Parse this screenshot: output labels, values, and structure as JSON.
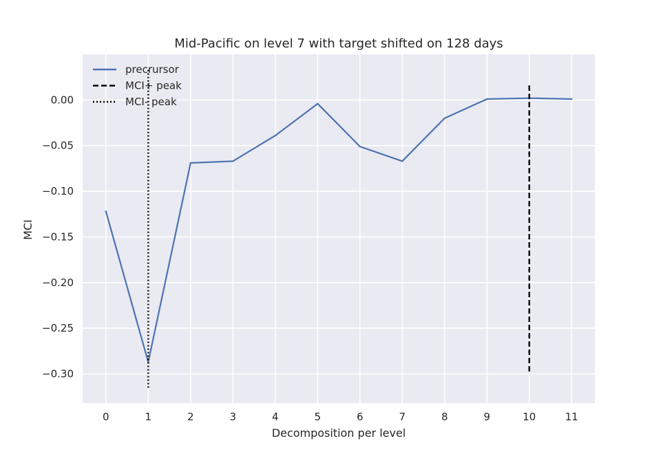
{
  "chart_data": {
    "type": "line",
    "title": "Mid-Pacific on level 7 with target shifted on 128 days",
    "xlabel": "Decomposition per level",
    "ylabel": "MCI",
    "x": [
      0,
      1,
      2,
      3,
      4,
      5,
      6,
      7,
      8,
      9,
      10,
      11
    ],
    "x_ticks": [
      "0",
      "1",
      "2",
      "3",
      "4",
      "5",
      "6",
      "7",
      "8",
      "9",
      "10",
      "11"
    ],
    "y_ticks": [
      "0.00",
      "−0.05",
      "−0.10",
      "−0.15",
      "−0.20",
      "−0.25",
      "−0.30"
    ],
    "y_tick_values": [
      0.0,
      -0.05,
      -0.1,
      -0.15,
      -0.2,
      -0.25,
      -0.3
    ],
    "xlim": [
      -0.55,
      11.55
    ],
    "ylim": [
      -0.332,
      0.05
    ],
    "grid": true,
    "legend_position": "top-left",
    "series": [
      {
        "name": "precrursor",
        "color": "#4c72b0",
        "values": [
          -0.122,
          -0.287,
          -0.069,
          -0.067,
          -0.039,
          -0.004,
          -0.051,
          -0.067,
          -0.02,
          0.001,
          0.002,
          0.001
        ]
      }
    ],
    "vlines": [
      {
        "name": "MCI+ peak",
        "x": 10,
        "ymin": -0.3,
        "ymax": 0.016,
        "style": "dashed",
        "color": "#000000"
      },
      {
        "name": "MCI- peak",
        "x": 1,
        "ymin": -0.317,
        "ymax": 0.033,
        "style": "dotted",
        "color": "#000000"
      }
    ],
    "legend": [
      {
        "label": "precrursor",
        "style": "solid",
        "color": "#4c72b0"
      },
      {
        "label": "MCI+ peak",
        "style": "dashed",
        "color": "#000000"
      },
      {
        "label": "MCI- peak",
        "style": "dotted",
        "color": "#000000"
      }
    ]
  }
}
